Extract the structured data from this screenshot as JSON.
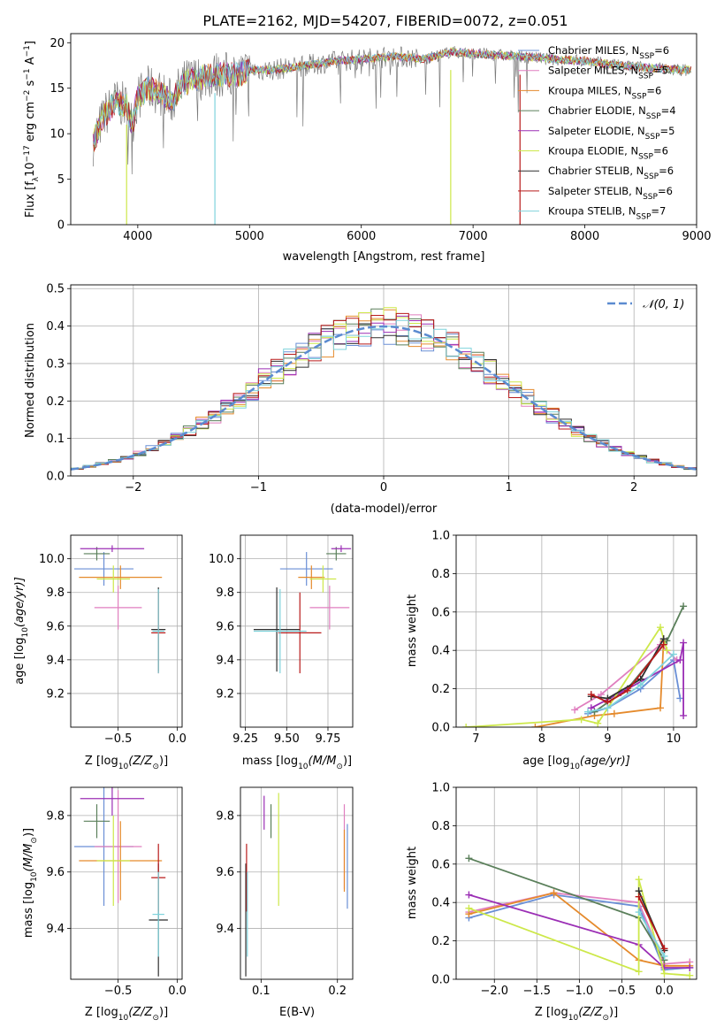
{
  "figure_title": "PLATE=2162, MJD=54207, FIBERID=0072, z=0.051",
  "colors": {
    "chabrier_miles": "#6a8fd6",
    "salpeter_miles": "#e07fbf",
    "kroupa_miles": "#e58a2c",
    "chabrier_elodie": "#5a7f5a",
    "salpeter_elodie": "#9b2fb5",
    "kroupa_elodie": "#cde84a",
    "chabrier_stelib": "#2f2f2f",
    "salpeter_stelib": "#b81a1a",
    "kroupa_stelib": "#7fd3dc",
    "normal_curve": "#5b8bd0",
    "grid": "#b0b0b0"
  },
  "chart_data": [
    {
      "id": "spectrum",
      "type": "line",
      "xlabel": "wavelength [Angstrom, rest frame]",
      "ylabel_main": "Flux [f",
      "ylabel_sub": "λ",
      "ylabel_mid": "10",
      "ylabel_sup1": "−17",
      "ylabel_rest": " erg cm",
      "ylabel_sup2": "−2",
      "ylabel_rest2": " s",
      "ylabel_sup3": "−1",
      "ylabel_rest3": " A",
      "ylabel_sup4": "−1",
      "ylabel_end": "]",
      "xlim": [
        3400,
        9000
      ],
      "ylim": [
        0,
        21
      ],
      "xticks": [
        4000,
        5000,
        6000,
        7000,
        8000,
        9000
      ],
      "yticks": [
        0,
        5,
        10,
        15,
        20
      ],
      "legend_position": "right",
      "legend": [
        {
          "model": "Chabrier MILES, N",
          "sub": "SSP",
          "eq": "=6",
          "color_key": "chabrier_miles"
        },
        {
          "model": "Salpeter MILES, N",
          "sub": "SSP",
          "eq": "=5",
          "color_key": "salpeter_miles"
        },
        {
          "model": "Kroupa MILES, N",
          "sub": "SSP",
          "eq": "=6",
          "color_key": "kroupa_miles"
        },
        {
          "model": "Chabrier ELODIE, N",
          "sub": "SSP",
          "eq": "=4",
          "color_key": "chabrier_elodie"
        },
        {
          "model": "Salpeter ELODIE, N",
          "sub": "SSP",
          "eq": "=5",
          "color_key": "salpeter_elodie"
        },
        {
          "model": "Kroupa ELODIE, N",
          "sub": "SSP",
          "eq": "=6",
          "color_key": "kroupa_elodie"
        },
        {
          "model": "Chabrier STELIB, N",
          "sub": "SSP",
          "eq": "=6",
          "color_key": "chabrier_stelib"
        },
        {
          "model": "Salpeter STELIB, N",
          "sub": "SSP",
          "eq": "=6",
          "color_key": "salpeter_stelib"
        },
        {
          "model": "Kroupa STELIB, N",
          "sub": "SSP",
          "eq": "=7",
          "color_key": "kroupa_stelib"
        }
      ],
      "data_curve": [
        [
          3600,
          9
        ],
        [
          3700,
          12
        ],
        [
          3800,
          13.5
        ],
        [
          3900,
          13
        ],
        [
          3950,
          11
        ],
        [
          4000,
          14
        ],
        [
          4100,
          15
        ],
        [
          4200,
          14.5
        ],
        [
          4300,
          13.5
        ],
        [
          4400,
          15.5
        ],
        [
          4500,
          16
        ],
        [
          4700,
          16.5
        ],
        [
          4900,
          16.5
        ],
        [
          5000,
          17
        ],
        [
          5200,
          17
        ],
        [
          5500,
          17.5
        ],
        [
          5800,
          18
        ],
        [
          6000,
          18.2
        ],
        [
          6300,
          18.5
        ],
        [
          6560,
          18.2
        ],
        [
          6800,
          19
        ],
        [
          7000,
          18.8
        ],
        [
          7400,
          18.5
        ],
        [
          7700,
          18.2
        ],
        [
          8000,
          18
        ],
        [
          8300,
          17.5
        ],
        [
          8600,
          17.2
        ],
        [
          8900,
          17
        ]
      ],
      "spikes": [
        [
          3900,
          0
        ],
        [
          4690,
          0
        ],
        [
          6800,
          0
        ],
        [
          7420,
          0
        ]
      ]
    },
    {
      "id": "residuals",
      "type": "line",
      "xlabel": "(data-model)/error",
      "ylabel": "Normed distribution",
      "xlim": [
        -2.5,
        2.5
      ],
      "ylim": [
        0,
        0.51
      ],
      "xticks": [
        -2,
        -1,
        0,
        1,
        2
      ],
      "yticks": [
        0.0,
        0.1,
        0.2,
        0.3,
        0.4,
        0.5
      ],
      "grid": true,
      "legend_position": "top-right",
      "legend_label": "𝒩(0, 1)"
    },
    {
      "id": "z_age",
      "type": "scatter",
      "xlabel": "Z [log",
      "xlabel_sub": "10",
      "xlabel_end": "(Z/Z",
      "xlabel_sub2": "⊙",
      "xlabel_close": ")]",
      "ylabel": "age  [log",
      "ylabel_sub": "10",
      "ylabel_end": "(age/yr)]",
      "xlim": [
        -0.9,
        0.04
      ],
      "ylim": [
        9.0,
        10.14
      ],
      "xticks": [
        -0.5,
        0.0
      ],
      "yticks": [
        9.2,
        9.4,
        9.6,
        9.8,
        10.0
      ],
      "grid": true,
      "points": [
        {
          "c": "chabrier_miles",
          "x": -0.62,
          "y": 9.94,
          "xerr": 0.25,
          "yerr": 0.1
        },
        {
          "c": "salpeter_miles",
          "x": -0.5,
          "y": 9.71,
          "xerr": 0.2,
          "yerr": 0.13
        },
        {
          "c": "kroupa_miles",
          "x": -0.48,
          "y": 9.89,
          "xerr": 0.35,
          "yerr": 0.07
        },
        {
          "c": "chabrier_elodie",
          "x": -0.68,
          "y": 10.03,
          "xerr": 0.11,
          "yerr": 0.04
        },
        {
          "c": "salpeter_elodie",
          "x": -0.55,
          "y": 10.06,
          "xerr": 0.27,
          "yerr": 0.02
        },
        {
          "c": "kroupa_elodie",
          "x": -0.54,
          "y": 9.88,
          "xerr": 0.14,
          "yerr": 0.08
        },
        {
          "c": "chabrier_stelib",
          "x": -0.16,
          "y": 9.58,
          "xerr": 0.06,
          "yerr": 0.25
        },
        {
          "c": "salpeter_stelib",
          "x": -0.16,
          "y": 9.56,
          "xerr": 0.06,
          "yerr": 0.24
        },
        {
          "c": "kroupa_stelib",
          "x": -0.16,
          "y": 9.57,
          "xerr": 0.05,
          "yerr": 0.25
        }
      ]
    },
    {
      "id": "mass_age",
      "type": "scatter",
      "xlabel": "mass [log",
      "xlabel_sub": "10",
      "xlabel_end": "(M/M",
      "xlabel_sub2": "⊙",
      "xlabel_close": ")]",
      "xlim": [
        9.22,
        9.9
      ],
      "ylim": [
        9.0,
        10.14
      ],
      "xticks": [
        9.25,
        9.5,
        9.75
      ],
      "xticklabels": [
        "9.25",
        "9.50",
        "9.75"
      ],
      "yticks": [
        9.2,
        9.4,
        9.6,
        9.8,
        10.0
      ],
      "grid": true,
      "points": [
        {
          "c": "chabrier_miles",
          "x": 9.62,
          "y": 9.94,
          "xerr": 0.16,
          "yerr": 0.1
        },
        {
          "c": "salpeter_miles",
          "x": 9.76,
          "y": 9.71,
          "xerr": 0.12,
          "yerr": 0.13
        },
        {
          "c": "kroupa_miles",
          "x": 9.65,
          "y": 9.89,
          "xerr": 0.08,
          "yerr": 0.07
        },
        {
          "c": "chabrier_elodie",
          "x": 9.8,
          "y": 10.03,
          "xerr": 0.06,
          "yerr": 0.04
        },
        {
          "c": "salpeter_elodie",
          "x": 9.83,
          "y": 10.06,
          "xerr": 0.06,
          "yerr": 0.02
        },
        {
          "c": "kroupa_elodie",
          "x": 9.72,
          "y": 9.88,
          "xerr": 0.08,
          "yerr": 0.08
        },
        {
          "c": "chabrier_stelib",
          "x": 9.44,
          "y": 9.58,
          "xerr": 0.14,
          "yerr": 0.25
        },
        {
          "c": "salpeter_stelib",
          "x": 9.58,
          "y": 9.56,
          "xerr": 0.13,
          "yerr": 0.24
        },
        {
          "c": "kroupa_stelib",
          "x": 9.46,
          "y": 9.57,
          "xerr": 0.16,
          "yerr": 0.25
        }
      ]
    },
    {
      "id": "age_weight",
      "type": "line",
      "xlabel": "age  [log",
      "xlabel_sub": "10",
      "xlabel_end": "(age/yr)]",
      "ylabel": "mass weight",
      "xlim": [
        6.7,
        10.35
      ],
      "ylim": [
        0.0,
        1.0
      ],
      "xticks": [
        7,
        8,
        9,
        10
      ],
      "yticks": [
        0.0,
        0.2,
        0.4,
        0.6,
        0.8,
        1.0
      ],
      "grid": true,
      "series": [
        {
          "c": "chabrier_miles",
          "pts": [
            [
              8.7,
              0.07
            ],
            [
              9.0,
              0.1
            ],
            [
              9.5,
              0.2
            ],
            [
              10.0,
              0.35
            ],
            [
              10.1,
              0.15
            ]
          ]
        },
        {
          "c": "salpeter_miles",
          "pts": [
            [
              8.5,
              0.09
            ],
            [
              8.9,
              0.17
            ],
            [
              9.8,
              0.43
            ],
            [
              10.05,
              0.35
            ]
          ]
        },
        {
          "c": "kroupa_miles",
          "pts": [
            [
              7.9,
              0.0
            ],
            [
              8.8,
              0.06
            ],
            [
              9.1,
              0.07
            ],
            [
              9.8,
              0.1
            ],
            [
              9.85,
              0.45
            ]
          ]
        },
        {
          "c": "chabrier_elodie",
          "pts": [
            [
              8.8,
              0.08
            ],
            [
              9.3,
              0.2
            ],
            [
              9.9,
              0.45
            ],
            [
              10.15,
              0.63
            ]
          ]
        },
        {
          "c": "salpeter_elodie",
          "pts": [
            [
              8.75,
              0.1
            ],
            [
              9.2,
              0.18
            ],
            [
              10.1,
              0.35
            ],
            [
              10.15,
              0.44
            ],
            [
              10.15,
              0.06
            ]
          ]
        },
        {
          "c": "kroupa_elodie",
          "pts": [
            [
              6.85,
              0.0
            ],
            [
              8.6,
              0.04
            ],
            [
              8.85,
              0.02
            ],
            [
              9.8,
              0.52
            ],
            [
              9.9,
              0.4
            ]
          ]
        },
        {
          "c": "chabrier_stelib",
          "pts": [
            [
              8.75,
              0.16
            ],
            [
              9.0,
              0.15
            ],
            [
              9.5,
              0.25
            ],
            [
              9.85,
              0.46
            ]
          ]
        },
        {
          "c": "salpeter_stelib",
          "pts": [
            [
              8.75,
              0.17
            ],
            [
              9.0,
              0.13
            ],
            [
              9.3,
              0.19
            ],
            [
              9.85,
              0.43
            ]
          ]
        },
        {
          "c": "kroupa_stelib",
          "pts": [
            [
              8.7,
              0.08
            ],
            [
              9.0,
              0.1
            ],
            [
              9.5,
              0.22
            ],
            [
              10.0,
              0.38
            ]
          ]
        }
      ]
    },
    {
      "id": "z_mass",
      "type": "scatter",
      "xlabel": "Z [log",
      "xlabel_sub": "10",
      "xlabel_end": "(Z/Z",
      "xlabel_sub2": "⊙",
      "xlabel_close": ")]",
      "ylabel": "mass [log",
      "ylabel_sub": "10",
      "ylabel_end": "(M/M",
      "ylabel_sub2": "⊙",
      "ylabel_close": ")]",
      "xlim": [
        -0.9,
        0.04
      ],
      "ylim": [
        9.22,
        9.9
      ],
      "xticks": [
        -0.5,
        0.0
      ],
      "yticks": [
        9.4,
        9.6,
        9.8
      ],
      "grid": true,
      "points": [
        {
          "c": "chabrier_miles",
          "x": -0.62,
          "y": 9.69,
          "xerr": 0.25,
          "yerr": 0.21
        },
        {
          "c": "salpeter_miles",
          "x": -0.5,
          "y": 9.69,
          "xerr": 0.2,
          "yerr": 0.2
        },
        {
          "c": "kroupa_miles",
          "x": -0.48,
          "y": 9.64,
          "xerr": 0.35,
          "yerr": 0.14
        },
        {
          "c": "chabrier_elodie",
          "x": -0.68,
          "y": 9.78,
          "xerr": 0.11,
          "yerr": 0.06
        },
        {
          "c": "salpeter_elodie",
          "x": -0.55,
          "y": 9.86,
          "xerr": 0.27,
          "yerr": 0.06
        },
        {
          "c": "kroupa_elodie",
          "x": -0.54,
          "y": 9.64,
          "xerr": 0.14,
          "yerr": 0.16
        },
        {
          "c": "chabrier_stelib",
          "x": -0.16,
          "y": 9.43,
          "xerr": 0.08,
          "yerr": 0.2
        },
        {
          "c": "salpeter_stelib",
          "x": -0.16,
          "y": 9.58,
          "xerr": 0.06,
          "yerr": 0.12
        },
        {
          "c": "kroupa_stelib",
          "x": -0.16,
          "y": 9.45,
          "xerr": 0.05,
          "yerr": 0.15
        }
      ]
    },
    {
      "id": "ebv_mass",
      "type": "scatter",
      "xlabel": "E(B-V)",
      "xlim": [
        0.073,
        0.22
      ],
      "ylim": [
        9.22,
        9.9
      ],
      "xticks": [
        0.1,
        0.2
      ],
      "yticks": [
        9.4,
        9.6,
        9.8
      ],
      "grid": true,
      "points": [
        {
          "c": "chabrier_miles",
          "x": 0.213,
          "y": 9.62,
          "yerr": 0.15
        },
        {
          "c": "salpeter_miles",
          "x": 0.209,
          "y": 9.69,
          "yerr": 0.15
        },
        {
          "c": "kroupa_miles",
          "x": 0.209,
          "y": 9.64,
          "yerr": 0.11
        },
        {
          "c": "chabrier_elodie",
          "x": 0.113,
          "y": 9.78,
          "yerr": 0.06
        },
        {
          "c": "salpeter_elodie",
          "x": 0.104,
          "y": 9.81,
          "yerr": 0.06
        },
        {
          "c": "kroupa_elodie",
          "x": 0.123,
          "y": 9.68,
          "yerr": 0.2
        },
        {
          "c": "chabrier_stelib",
          "x": 0.08,
          "y": 9.43,
          "yerr": 0.2
        },
        {
          "c": "salpeter_stelib",
          "x": 0.081,
          "y": 9.58,
          "yerr": 0.12
        },
        {
          "c": "kroupa_stelib",
          "x": 0.082,
          "y": 9.45,
          "yerr": 0.15
        }
      ]
    },
    {
      "id": "z_weight",
      "type": "line",
      "xlabel": "Z [log",
      "xlabel_sub": "10",
      "xlabel_end": "(Z/Z",
      "xlabel_sub2": "⊙",
      "xlabel_close": ")]",
      "ylabel": "mass weight",
      "xlim": [
        -2.45,
        0.38
      ],
      "ylim": [
        0.0,
        1.0
      ],
      "xticks": [
        -2.0,
        -1.5,
        -1.0,
        -0.5,
        0.0
      ],
      "xticklabels": [
        "−2.0",
        "−1.5",
        "−1.0",
        "−0.5",
        "0.0"
      ],
      "yticks": [
        0.0,
        0.2,
        0.4,
        0.6,
        0.8,
        1.0
      ],
      "grid": true,
      "series": [
        {
          "c": "chabrier_miles",
          "pts": [
            [
              -2.3,
              0.32
            ],
            [
              -1.3,
              0.44
            ],
            [
              -0.3,
              0.38
            ],
            [
              0.0,
              0.05
            ],
            [
              0.3,
              0.06
            ]
          ]
        },
        {
          "c": "salpeter_miles",
          "pts": [
            [
              -2.3,
              0.35
            ],
            [
              -1.3,
              0.45
            ],
            [
              -0.3,
              0.4
            ],
            [
              0.0,
              0.08
            ],
            [
              0.3,
              0.09
            ]
          ]
        },
        {
          "c": "kroupa_miles",
          "pts": [
            [
              -2.3,
              0.34
            ],
            [
              -1.3,
              0.45
            ],
            [
              -0.3,
              0.1
            ],
            [
              0.0,
              0.07
            ],
            [
              0.3,
              0.07
            ]
          ]
        },
        {
          "c": "chabrier_elodie",
          "pts": [
            [
              -2.3,
              0.63
            ],
            [
              -0.3,
              0.32
            ],
            [
              0.0,
              0.1
            ]
          ]
        },
        {
          "c": "salpeter_elodie",
          "pts": [
            [
              -2.3,
              0.44
            ],
            [
              -0.3,
              0.18
            ],
            [
              0.0,
              0.06
            ],
            [
              0.3,
              0.06
            ]
          ]
        },
        {
          "c": "kroupa_elodie",
          "pts": [
            [
              -2.3,
              0.37
            ],
            [
              -0.3,
              0.04
            ],
            [
              -0.3,
              0.52
            ],
            [
              0.0,
              0.03
            ],
            [
              0.3,
              0.02
            ]
          ]
        },
        {
          "c": "chabrier_stelib",
          "pts": [
            [
              -0.3,
              0.46
            ],
            [
              0.0,
              0.15
            ]
          ]
        },
        {
          "c": "salpeter_stelib",
          "pts": [
            [
              -0.3,
              0.43
            ],
            [
              0.0,
              0.16
            ]
          ]
        },
        {
          "c": "kroupa_stelib",
          "pts": [
            [
              -0.3,
              0.35
            ],
            [
              0.0,
              0.12
            ]
          ]
        }
      ]
    }
  ]
}
